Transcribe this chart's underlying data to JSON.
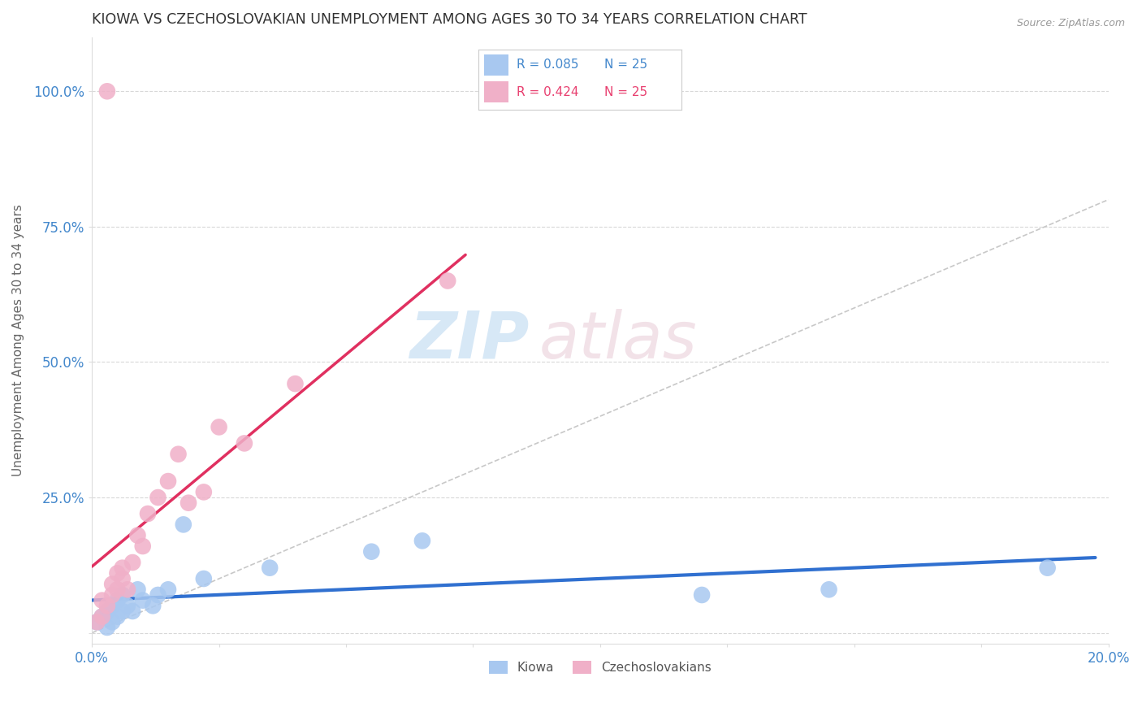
{
  "title": "KIOWA VS CZECHOSLOVAKIAN UNEMPLOYMENT AMONG AGES 30 TO 34 YEARS CORRELATION CHART",
  "source": "Source: ZipAtlas.com",
  "ylabel": "Unemployment Among Ages 30 to 34 years",
  "xlim": [
    0.0,
    0.2
  ],
  "ylim": [
    -0.02,
    1.1
  ],
  "xtick_positions": [
    0.0,
    0.025,
    0.05,
    0.075,
    0.1,
    0.125,
    0.15,
    0.175,
    0.2
  ],
  "xtick_labels": [
    "0.0%",
    "",
    "",
    "",
    "",
    "",
    "",
    "",
    "20.0%"
  ],
  "ytick_positions": [
    0.0,
    0.25,
    0.5,
    0.75,
    1.0
  ],
  "ytick_labels": [
    "",
    "25.0%",
    "50.0%",
    "75.0%",
    "100.0%"
  ],
  "kiowa_color": "#a8c8f0",
  "czech_color": "#f0b0c8",
  "kiowa_line_color": "#3070d0",
  "czech_line_color": "#e03060",
  "kiowa_x": [
    0.001,
    0.002,
    0.003,
    0.003,
    0.004,
    0.004,
    0.005,
    0.005,
    0.006,
    0.006,
    0.007,
    0.008,
    0.009,
    0.01,
    0.012,
    0.013,
    0.015,
    0.018,
    0.022,
    0.035,
    0.055,
    0.065,
    0.12,
    0.145,
    0.188
  ],
  "kiowa_y": [
    0.02,
    0.03,
    0.01,
    0.04,
    0.02,
    0.05,
    0.03,
    0.06,
    0.04,
    0.07,
    0.05,
    0.04,
    0.08,
    0.06,
    0.05,
    0.07,
    0.08,
    0.2,
    0.1,
    0.12,
    0.15,
    0.17,
    0.07,
    0.08,
    0.12
  ],
  "czech_x": [
    0.001,
    0.002,
    0.002,
    0.003,
    0.004,
    0.004,
    0.005,
    0.005,
    0.006,
    0.006,
    0.007,
    0.008,
    0.009,
    0.01,
    0.011,
    0.013,
    0.015,
    0.017,
    0.019,
    0.022,
    0.025,
    0.03,
    0.04,
    0.07,
    0.003
  ],
  "czech_y": [
    0.02,
    0.03,
    0.06,
    0.05,
    0.07,
    0.09,
    0.08,
    0.11,
    0.1,
    0.12,
    0.08,
    0.13,
    0.18,
    0.16,
    0.22,
    0.25,
    0.28,
    0.33,
    0.24,
    0.26,
    0.38,
    0.35,
    0.46,
    0.65,
    1.0
  ],
  "legend_kiowa_color": "#a8c8f0",
  "legend_czech_color": "#f0b0c8",
  "legend_r_kiowa": "R = 0.085",
  "legend_n_kiowa": "N = 25",
  "legend_r_czech": "R = 0.424",
  "legend_n_czech": "N = 25"
}
